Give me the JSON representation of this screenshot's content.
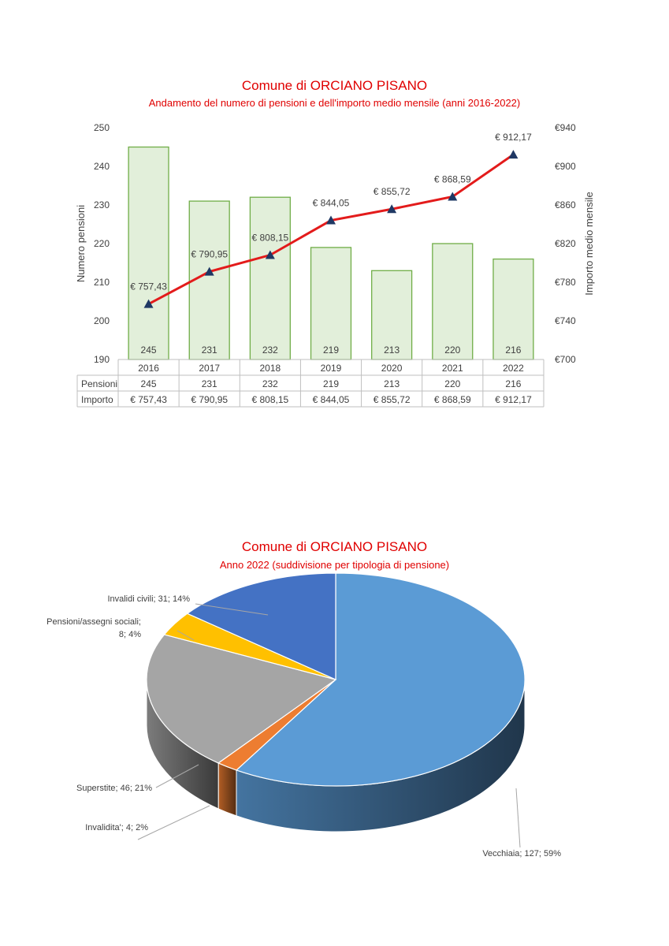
{
  "charts_text": {
    "chart1_title": "Comune di ORCIANO PISANO",
    "chart1_subtitle": "Andamento del numero di pensioni e dell'importo medio mensile (anni 2016-2022)",
    "chart2_title": "Comune di ORCIANO PISANO",
    "chart2_subtitle": "Anno 2022 (suddivisione per tipologia di pensione)"
  },
  "chart_data": [
    {
      "type": "bar",
      "title": "Comune di ORCIANO PISANO",
      "subtitle": "Andamento del numero di pensioni e dell'importo medio mensile (anni 2016-2022)",
      "categories": [
        "2016",
        "2017",
        "2018",
        "2019",
        "2020",
        "2021",
        "2022"
      ],
      "ylabel": "Numero pensioni",
      "ylabel_right": "Importo medio mensile",
      "ylim": [
        190,
        250
      ],
      "yticks": [
        "190",
        "200",
        "210",
        "220",
        "230",
        "240",
        "250"
      ],
      "ylim_right": [
        700,
        940
      ],
      "yticks_right": [
        "€700",
        "€740",
        "€780",
        "€820",
        "€860",
        "€900",
        "€940"
      ],
      "series": [
        {
          "name": "Pensioni",
          "type": "bar",
          "axis": "left",
          "color": "#e2efda",
          "border": "#70ad47",
          "values": [
            245,
            231,
            232,
            219,
            213,
            220,
            216
          ],
          "labels": [
            "245",
            "231",
            "232",
            "219",
            "213",
            "220",
            "216"
          ]
        },
        {
          "name": "Importo",
          "type": "line",
          "axis": "right",
          "color": "#e31b1b",
          "marker_color": "#1f3864",
          "values": [
            757.43,
            790.95,
            808.15,
            844.05,
            855.72,
            868.59,
            912.17
          ],
          "labels": [
            "€ 757,43",
            "€ 790,95",
            "€ 808,15",
            "€ 844,05",
            "€ 855,72",
            "€ 868,59",
            "€ 912,17"
          ]
        }
      ],
      "data_table": true,
      "grid": false
    },
    {
      "type": "pie",
      "title": "Comune di ORCIANO PISANO",
      "subtitle": "Anno 2022 (suddivisione per tipologia di pensione)",
      "slices": [
        {
          "name": "Vecchiaia",
          "value": 127,
          "percent": 59,
          "color": "#5b9bd5",
          "label": "Vecchiaia; 127; 59%"
        },
        {
          "name": "Invalidita'",
          "value": 4,
          "percent": 2,
          "color": "#ed7d31",
          "label": "Invalidita'; 4; 2%"
        },
        {
          "name": "Superstite",
          "value": 46,
          "percent": 21,
          "color": "#a5a5a5",
          "label": "Superstite; 46; 21%"
        },
        {
          "name": "Pensioni/assegni sociali",
          "value": 8,
          "percent": 4,
          "color": "#ffc000",
          "label_lines": [
            "Pensioni/assegni sociali;",
            "8; 4%"
          ]
        },
        {
          "name": "Invalidi civili",
          "value": 31,
          "percent": 14,
          "color": "#4472c4",
          "label": "Invalidi civili; 31; 14%"
        }
      ],
      "style": "3d"
    }
  ]
}
